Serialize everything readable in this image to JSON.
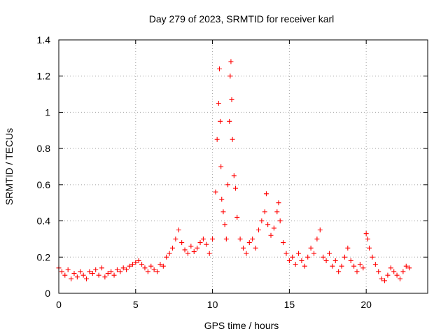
{
  "chart_data": {
    "type": "scatter",
    "title": "Day 279 of 2023, SRMTID for receiver karl",
    "xlabel": "GPS time / hours",
    "ylabel": "SRMTID / TECUs",
    "xlim": [
      0,
      24
    ],
    "ylim": [
      0,
      1.4
    ],
    "xticks": [
      0,
      5,
      10,
      15,
      20
    ],
    "yticks": [
      0,
      0.2,
      0.4,
      0.6,
      0.8,
      1,
      1.2,
      1.4
    ],
    "xtick_labels": [
      "0",
      "5",
      "10",
      "15",
      "20"
    ],
    "ytick_labels": [
      "0",
      "0.2",
      "0.4",
      "0.6",
      "0.8",
      "1",
      "1.2",
      "1.4"
    ],
    "grid": true,
    "marker": "+",
    "color": "#ff0000",
    "series": [
      {
        "name": "SRMTID",
        "x": [
          0.0,
          0.2,
          0.4,
          0.6,
          0.8,
          1.0,
          1.2,
          1.4,
          1.6,
          1.8,
          2.0,
          2.2,
          2.4,
          2.6,
          2.8,
          3.0,
          3.2,
          3.4,
          3.6,
          3.8,
          4.0,
          4.2,
          4.4,
          4.6,
          4.8,
          5.0,
          5.2,
          5.4,
          5.6,
          5.8,
          6.0,
          6.2,
          6.4,
          6.6,
          6.8,
          7.0,
          7.2,
          7.4,
          7.6,
          7.8,
          8.0,
          8.2,
          8.4,
          8.6,
          8.8,
          9.0,
          9.2,
          9.4,
          9.6,
          9.8,
          10.0,
          10.2,
          10.3,
          10.4,
          10.45,
          10.5,
          10.55,
          10.6,
          10.7,
          10.8,
          10.9,
          11.0,
          11.1,
          11.15,
          11.2,
          11.25,
          11.3,
          11.4,
          11.5,
          11.6,
          11.8,
          12.0,
          12.2,
          12.4,
          12.6,
          12.8,
          13.0,
          13.2,
          13.4,
          13.5,
          13.6,
          13.8,
          14.0,
          14.2,
          14.3,
          14.4,
          14.6,
          14.8,
          15.0,
          15.2,
          15.4,
          15.6,
          15.8,
          16.0,
          16.2,
          16.4,
          16.6,
          16.8,
          17.0,
          17.2,
          17.4,
          17.6,
          17.8,
          18.0,
          18.2,
          18.4,
          18.6,
          18.8,
          19.0,
          19.2,
          19.4,
          19.6,
          19.8,
          20.0,
          20.1,
          20.2,
          20.4,
          20.6,
          20.8,
          21.0,
          21.2,
          21.4,
          21.6,
          21.8,
          22.0,
          22.2,
          22.4,
          22.6,
          22.8
        ],
        "y": [
          0.14,
          0.12,
          0.1,
          0.13,
          0.08,
          0.11,
          0.09,
          0.12,
          0.1,
          0.08,
          0.12,
          0.11,
          0.13,
          0.1,
          0.14,
          0.09,
          0.11,
          0.12,
          0.1,
          0.13,
          0.12,
          0.14,
          0.13,
          0.15,
          0.16,
          0.17,
          0.18,
          0.16,
          0.14,
          0.12,
          0.15,
          0.13,
          0.12,
          0.16,
          0.15,
          0.2,
          0.22,
          0.25,
          0.3,
          0.35,
          0.28,
          0.24,
          0.22,
          0.26,
          0.23,
          0.25,
          0.28,
          0.3,
          0.27,
          0.22,
          0.3,
          0.56,
          0.85,
          1.05,
          1.24,
          0.95,
          0.7,
          0.52,
          0.45,
          0.38,
          0.3,
          0.6,
          0.95,
          1.2,
          1.28,
          1.07,
          0.85,
          0.65,
          0.58,
          0.42,
          0.3,
          0.25,
          0.22,
          0.28,
          0.3,
          0.25,
          0.35,
          0.4,
          0.45,
          0.55,
          0.38,
          0.32,
          0.36,
          0.45,
          0.5,
          0.4,
          0.28,
          0.22,
          0.18,
          0.2,
          0.16,
          0.22,
          0.18,
          0.15,
          0.2,
          0.25,
          0.22,
          0.3,
          0.35,
          0.2,
          0.18,
          0.22,
          0.15,
          0.18,
          0.12,
          0.15,
          0.2,
          0.25,
          0.18,
          0.15,
          0.12,
          0.16,
          0.14,
          0.33,
          0.3,
          0.25,
          0.2,
          0.16,
          0.12,
          0.08,
          0.07,
          0.1,
          0.14,
          0.12,
          0.1,
          0.08,
          0.12,
          0.15,
          0.14
        ]
      }
    ]
  }
}
